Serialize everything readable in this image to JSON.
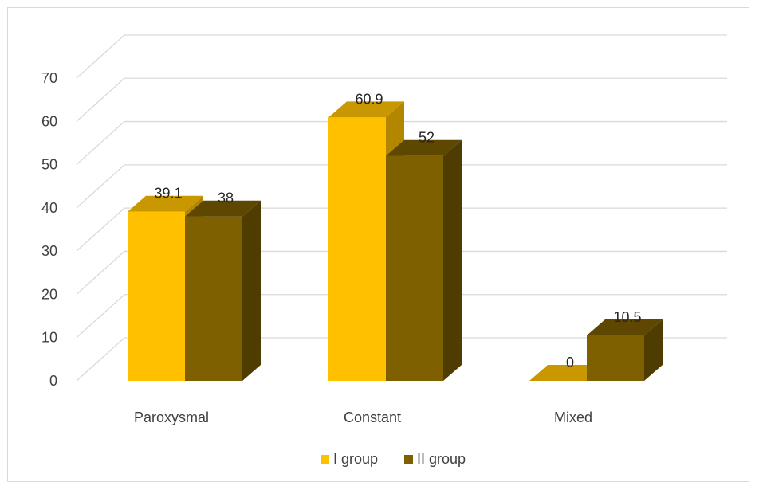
{
  "chart_data": {
    "type": "bar",
    "style": "3d-clustered-column",
    "categories": [
      "Paroxysmal",
      "Constant",
      "Mixed"
    ],
    "series": [
      {
        "name": "I group",
        "values": [
          39.1,
          60.9,
          0
        ],
        "color": "#FFC000",
        "top_color": "#C99700",
        "side_color": "#B38600"
      },
      {
        "name": "II group",
        "values": [
          38,
          52,
          10.5
        ],
        "color": "#7F6000",
        "top_color": "#5E4700",
        "side_color": "#4F3C00"
      }
    ],
    "ylim": [
      0,
      70
    ],
    "yticks": [
      0,
      10,
      20,
      30,
      40,
      50,
      60,
      70
    ],
    "grid": true,
    "grid_color": "#d9d9d9",
    "legend_position": "bottom"
  }
}
